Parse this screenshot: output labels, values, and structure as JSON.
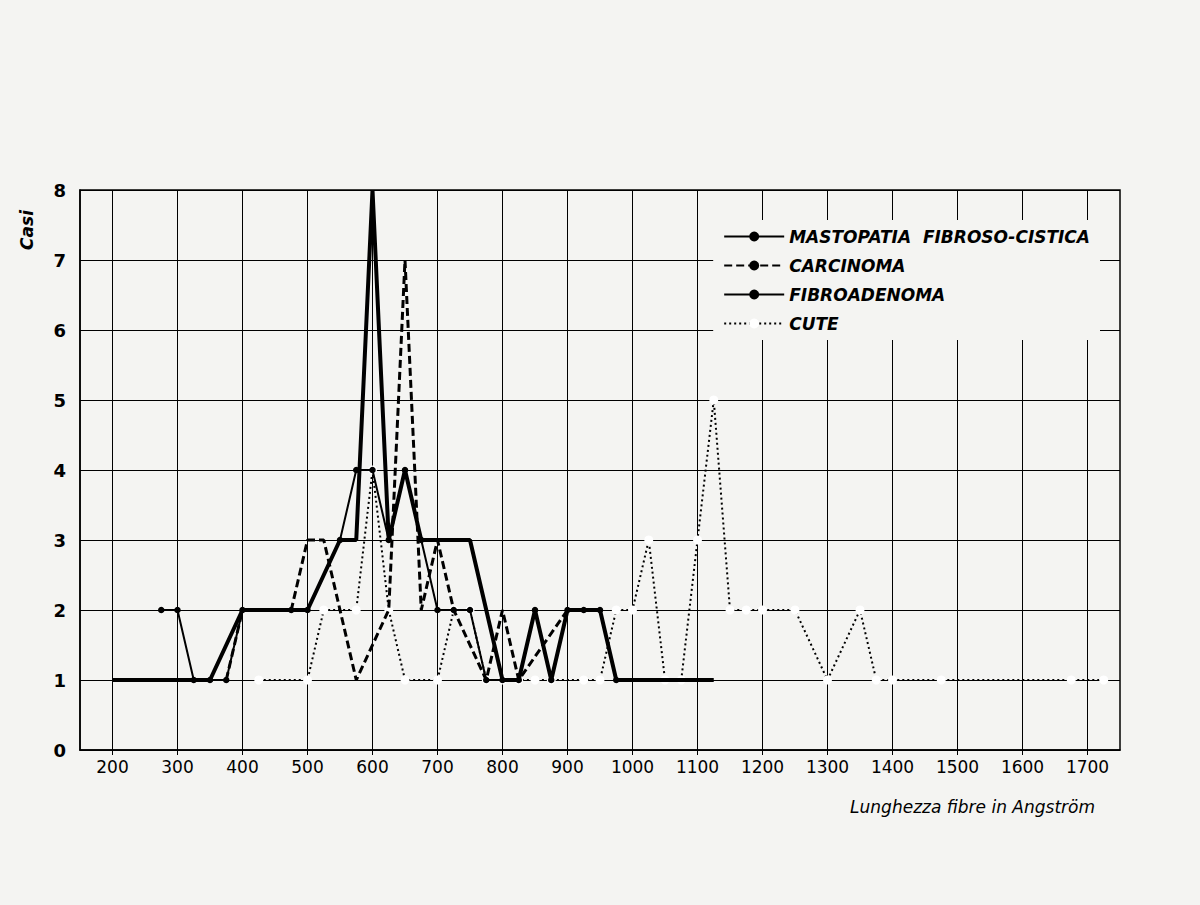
{
  "chart_data": {
    "type": "line",
    "xlabel": "Lunghezza fibre in Angström",
    "ylabel": "Casi",
    "xlim": [
      150,
      1750
    ],
    "xticks": [
      200,
      300,
      400,
      500,
      600,
      700,
      800,
      900,
      1000,
      1100,
      1200,
      1300,
      1400,
      1500,
      1600,
      1700
    ],
    "ylim": [
      0,
      8
    ],
    "yticks": [
      0,
      1,
      2,
      3,
      4,
      5,
      6,
      7,
      8
    ],
    "grid": true,
    "legend": "upper right",
    "series": [
      {
        "name": "MASTOPATIA  FIBROSO-CISTICA",
        "color": "#000000",
        "line_style": "solid",
        "marker": "none",
        "x": [
          200,
          350,
          400,
          500,
          550,
          575,
          600,
          625,
          650,
          675,
          700,
          750,
          775,
          800,
          825,
          850,
          875,
          900,
          950,
          975,
          1125
        ],
        "values": [
          1,
          1,
          2,
          2,
          3,
          3,
          8,
          3,
          4,
          3,
          3,
          3,
          2,
          1,
          1,
          2,
          1,
          2,
          2,
          1,
          1
        ]
      },
      {
        "name": "CARCINOMA",
        "color": "#000000",
        "line_style": "dashed",
        "marker": "none",
        "x": [
          375,
          400,
          475,
          500,
          525,
          550,
          575,
          625,
          650,
          675,
          700,
          725,
          775,
          800,
          825,
          900
        ],
        "values": [
          1,
          2,
          2,
          3,
          3,
          2,
          1,
          2,
          7,
          2,
          3,
          2,
          1,
          2,
          1,
          2
        ]
      },
      {
        "name": "FIBROADENOMA",
        "color": "#000000",
        "line_style": "solid",
        "marker": "dot",
        "x": [
          275,
          300,
          325,
          350,
          375,
          400,
          475,
          500,
          550,
          575,
          600,
          625,
          650,
          675,
          700,
          725,
          750,
          775,
          800,
          825,
          850,
          875,
          900,
          925,
          950,
          975
        ],
        "values": [
          2,
          2,
          1,
          1,
          1,
          2,
          2,
          2,
          3,
          4,
          4,
          3,
          4,
          3,
          2,
          2,
          2,
          1,
          1,
          1,
          2,
          1,
          2,
          2,
          2,
          1
        ]
      },
      {
        "name": "CUTE",
        "color": "#000000",
        "line_style": "dotted",
        "marker": "circle",
        "x": [
          425,
          500,
          525,
          575,
          600,
          625,
          650,
          700,
          725,
          750,
          775,
          800,
          825,
          850,
          875,
          925,
          950,
          975,
          1000,
          1025,
          1050,
          1075,
          1100,
          1125,
          1150,
          1175,
          1200,
          1250,
          1300,
          1350,
          1375,
          1400,
          1475,
          1675,
          1725
        ],
        "values": [
          1,
          1,
          2,
          2,
          4,
          2,
          1,
          1,
          2,
          2,
          1,
          1,
          1,
          1,
          1,
          1,
          1,
          2,
          2,
          3,
          1,
          1,
          3,
          5,
          2,
          2,
          2,
          2,
          1,
          2,
          1,
          1,
          1,
          1,
          1
        ]
      }
    ]
  }
}
